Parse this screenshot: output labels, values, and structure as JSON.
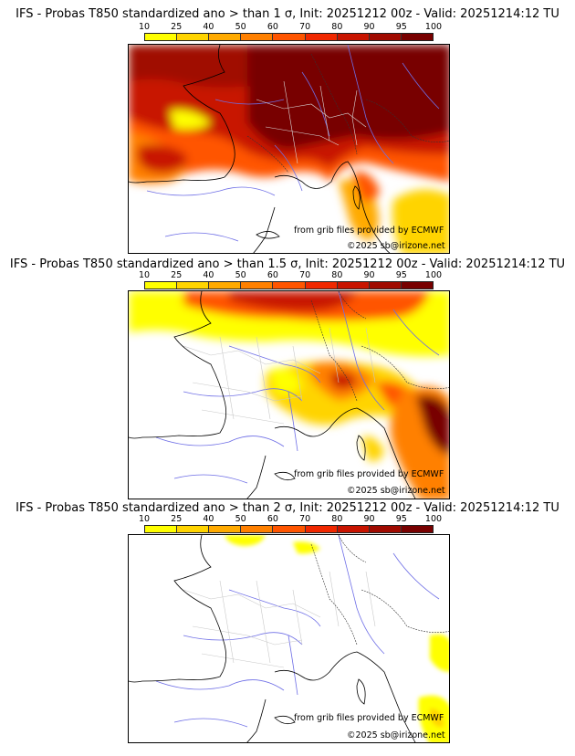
{
  "colorbar": {
    "ticks": [
      "10",
      "25",
      "40",
      "50",
      "60",
      "70",
      "80",
      "90",
      "95",
      "100"
    ],
    "colors": [
      "#ffff00",
      "#ffd400",
      "#ffaa00",
      "#ff8000",
      "#ff5500",
      "#f02800",
      "#c81400",
      "#a00a00",
      "#780000"
    ]
  },
  "panels": [
    {
      "title": "IFS - Probas T850  standardized ano > than 1 σ, Init: 20251212 00z - Valid: 20251214:12 TU",
      "credit_source": "from grib files provided by ECMWF",
      "credit_copy": "©2025 sb@irizone.net"
    },
    {
      "title": "IFS - Probas T850  standardized ano > than 1.5 σ, Init: 20251212 00z - Valid: 20251214:12 TU",
      "credit_source": "from grib files provided by ECMWF",
      "credit_copy": "©2025 sb@irizone.net"
    },
    {
      "title": "IFS - Probas T850  standardized ano > than 2 σ, Init: 20251212 00z - Valid: 20251214:12 TU",
      "credit_source": "from grib files provided by ECMWF",
      "credit_copy": "©2025 sb@irizone.net"
    }
  ]
}
